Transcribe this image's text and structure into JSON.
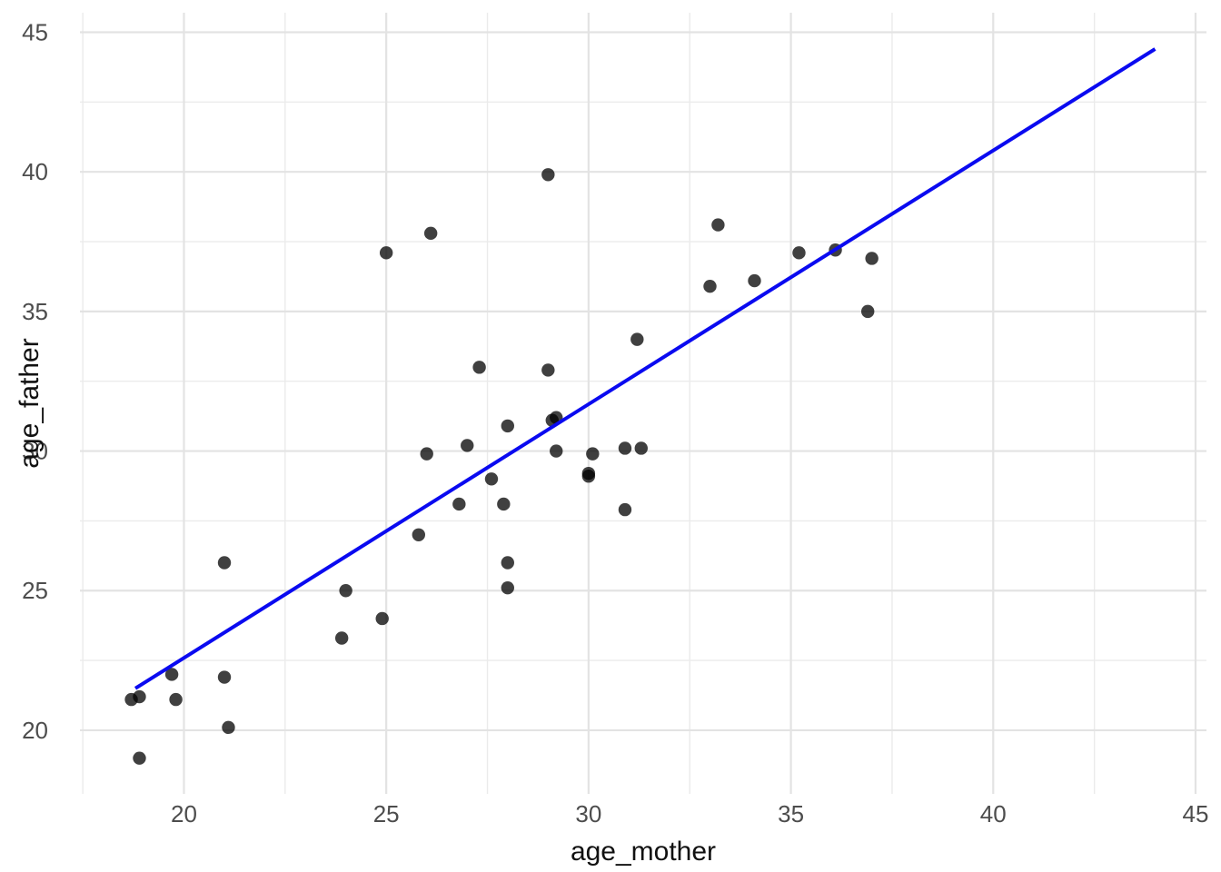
{
  "figure": {
    "x_axis_title": "age_mother",
    "y_axis_title": "age_father"
  },
  "chart_data": {
    "type": "scatter",
    "title": "",
    "xlabel": "age_mother",
    "ylabel": "age_father",
    "xlim": [
      17.43,
      45.27
    ],
    "ylim": [
      17.72,
      45.7
    ],
    "x_ticks": [
      20,
      25,
      30,
      35,
      40,
      45
    ],
    "y_ticks": [
      20,
      25,
      30,
      35,
      40,
      45
    ],
    "x_minor_ticks": [
      17.5,
      22.5,
      27.5,
      32.5,
      37.5,
      42.5
    ],
    "y_minor_ticks": [
      22.5,
      27.5,
      32.5,
      37.5,
      42.5
    ],
    "grid": true,
    "legend": "none",
    "points": [
      [
        18.7,
        21.1
      ],
      [
        18.9,
        21.2
      ],
      [
        18.9,
        19.0
      ],
      [
        19.7,
        22.0
      ],
      [
        19.8,
        21.1
      ],
      [
        21.0,
        26.0
      ],
      [
        21.0,
        21.9
      ],
      [
        21.1,
        20.1
      ],
      [
        23.9,
        23.3
      ],
      [
        24.0,
        25.0
      ],
      [
        24.9,
        24.0
      ],
      [
        25.0,
        37.1
      ],
      [
        26.1,
        37.8
      ],
      [
        29.0,
        39.9
      ],
      [
        25.8,
        27.0
      ],
      [
        26.0,
        29.9
      ],
      [
        26.8,
        28.1
      ],
      [
        27.0,
        30.2
      ],
      [
        27.3,
        33.0
      ],
      [
        27.6,
        29.0
      ],
      [
        27.9,
        28.1
      ],
      [
        28.0,
        30.9
      ],
      [
        28.0,
        26.0
      ],
      [
        28.0,
        25.1
      ],
      [
        29.0,
        32.9
      ],
      [
        29.1,
        31.1
      ],
      [
        29.2,
        31.2
      ],
      [
        29.2,
        30.0
      ],
      [
        30.0,
        29.1
      ],
      [
        30.0,
        29.2
      ],
      [
        30.1,
        29.9
      ],
      [
        30.9,
        30.1
      ],
      [
        31.3,
        30.1
      ],
      [
        30.9,
        27.9
      ],
      [
        31.2,
        34.0
      ],
      [
        33.0,
        35.9
      ],
      [
        33.2,
        38.1
      ],
      [
        34.1,
        36.1
      ],
      [
        35.2,
        37.1
      ],
      [
        36.1,
        37.2
      ],
      [
        37.0,
        36.9
      ],
      [
        36.9,
        35.0
      ]
    ],
    "trend_line": {
      "x1": 18.8,
      "y1": 21.5,
      "x2": 44.0,
      "y2": 44.4
    },
    "colors": {
      "point": "#000000",
      "point_opacity": 0.75,
      "trend": "#0a0af0",
      "grid_major": "#e3e3e3",
      "grid_minor": "#ebebeb",
      "tick_text": "#4d4d4d",
      "title_text": "#111111",
      "background": "#ffffff"
    }
  }
}
